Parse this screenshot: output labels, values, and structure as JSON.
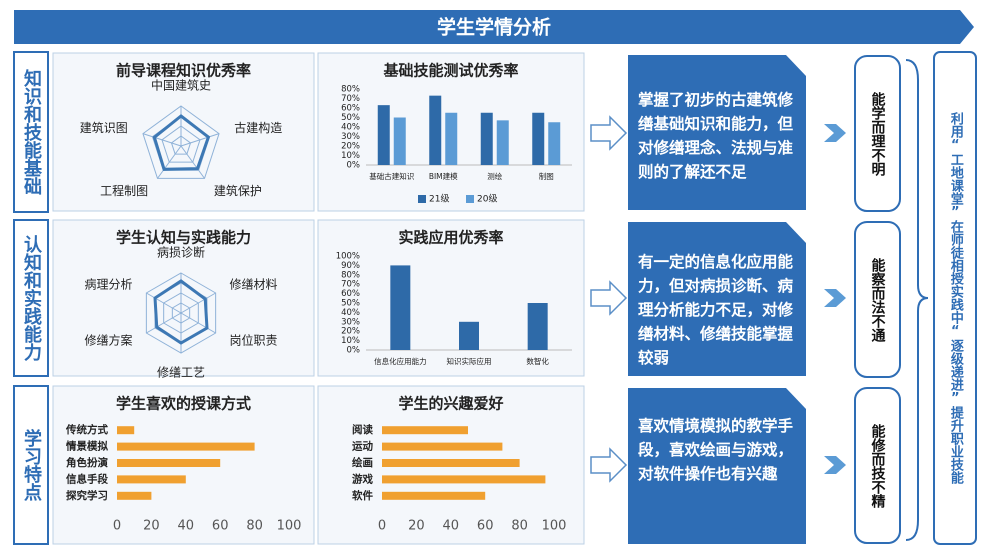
{
  "title": "学生学情分析",
  "row_labels": [
    "知识和技能基础",
    "认知和实践能力",
    "学习特点"
  ],
  "conclusions": [
    "掌握了初步的古建筑修缮基础知识和能力，但对修缮理念、法规与准则的了解还不足",
    "有一定的信息化应用能力，但对病损诊断、病理分析能力不足，对修缮材料、修缮技能掌握较弱",
    "喜欢情境模拟的教学手段，喜欢绘画与游戏，对软件操作也有兴趣"
  ],
  "summaries": [
    "能学而理不明",
    "能察而法不通",
    "能修而技不精"
  ],
  "side_text": "利用“工地课堂”在师徒相授实践中“逐级递进”提升职业技能",
  "chart_data": [
    {
      "type": "radar",
      "title": "前导课程知识优秀率",
      "categories": [
        "中国建筑史",
        "古建构造",
        "建筑保护",
        "工程制图",
        "建筑识图"
      ],
      "values": [
        75,
        72,
        70,
        72,
        70
      ],
      "rlim": [
        0,
        100
      ],
      "color": "#3d78b4"
    },
    {
      "type": "bar",
      "title": "基础技能测试优秀率",
      "categories": [
        "基础古建知识",
        "BIM建模",
        "测绘",
        "制图"
      ],
      "series": [
        {
          "name": "21级",
          "color": "#2e6aa8",
          "values": [
            63,
            73,
            55,
            55
          ]
        },
        {
          "name": "20级",
          "color": "#5b9bd5",
          "values": [
            50,
            55,
            47,
            45
          ]
        }
      ],
      "ylim": [
        0,
        80
      ],
      "yticks": [
        {
          "value": 0,
          "label": "0%"
        },
        {
          "value": 10,
          "label": "10%"
        },
        {
          "value": 20,
          "label": "20%"
        },
        {
          "value": 30,
          "label": "30%"
        },
        {
          "value": 40,
          "label": "40%"
        },
        {
          "value": 50,
          "label": "50%"
        },
        {
          "value": 60,
          "label": "60%"
        },
        {
          "value": 70,
          "label": "70%"
        },
        {
          "value": 80,
          "label": "80%"
        }
      ]
    },
    {
      "type": "radar",
      "title": "学生认知与实践能力",
      "categories": [
        "病损诊断",
        "修缮材料",
        "岗位职责",
        "修缮工艺",
        "修缮方案",
        "病理分析"
      ],
      "values": [
        80,
        70,
        75,
        75,
        70,
        75
      ],
      "rlim": [
        0,
        100
      ],
      "color": "#3d78b4"
    },
    {
      "type": "bar",
      "title": "实践应用优秀率",
      "categories": [
        "信息化应用能力",
        "知识实际应用",
        "数智化"
      ],
      "series": [
        {
          "color": "#2e6aa8",
          "values": [
            90,
            30,
            50
          ]
        }
      ],
      "ylim": [
        0,
        100
      ],
      "yticks": [
        {
          "value": 0,
          "label": "0%"
        },
        {
          "value": 10,
          "label": "10%"
        },
        {
          "value": 20,
          "label": "20%"
        },
        {
          "value": 30,
          "label": "30%"
        },
        {
          "value": 40,
          "label": "40%"
        },
        {
          "value": 50,
          "label": "50%"
        },
        {
          "value": 60,
          "label": "60%"
        },
        {
          "value": 70,
          "label": "70%"
        },
        {
          "value": 80,
          "label": "80%"
        },
        {
          "value": 90,
          "label": "90%"
        },
        {
          "value": 100,
          "label": "100%"
        }
      ]
    },
    {
      "type": "hbar",
      "title": "学生喜欢的授课方式",
      "categories": [
        "传统方式",
        "情景模拟",
        "角色扮演",
        "信息手段",
        "探究学习"
      ],
      "values": [
        10,
        80,
        60,
        40,
        20
      ],
      "color": "#f0a030",
      "xlim": [
        0,
        100
      ],
      "xticks": [
        0,
        20,
        40,
        60,
        80,
        100
      ]
    },
    {
      "type": "hbar",
      "title": "学生的兴趣爱好",
      "categories": [
        "阅读",
        "运动",
        "绘画",
        "游戏",
        "软件"
      ],
      "values": [
        50,
        70,
        80,
        95,
        60
      ],
      "color": "#f0a030",
      "xlim": [
        0,
        100
      ],
      "xticks": [
        0,
        20,
        40,
        60,
        80,
        100
      ]
    }
  ]
}
